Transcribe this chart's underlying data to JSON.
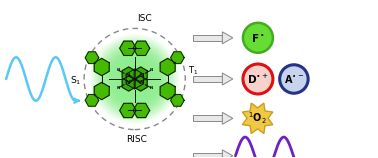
{
  "bg_color": "#ffffff",
  "wave_color_left": "#5bc8f5",
  "wave_color_right": "#7020c0",
  "dashed_circle_color": "#888888",
  "arrow_face": "#e8e8e8",
  "arrow_edge": "#888888",
  "f_circle_color": "#66dd33",
  "f_circle_edge": "#44aa22",
  "d_circle_fill": "#f8d0cc",
  "d_circle_edge": "#dd1111",
  "a_circle_fill": "#c8d4ee",
  "a_circle_edge": "#223388",
  "star_face": "#f0c844",
  "star_edge": "#c8a020",
  "mol_line": "#111111",
  "mol_fill_outer": "#33aa00",
  "mol_fill_inner": "#228800",
  "green_glow": "#90ee90",
  "isc_label": "ISC",
  "risc_label": "RISC",
  "s1_label": "S$_1$",
  "t1_label": "T$_1$",
  "f_label": "F$^\\bullet$",
  "d_label": "D$^{\\bullet+}$",
  "a_label": "A$^{\\bullet-}$",
  "o2_label": "$^1$O$_2$",
  "figsize": [
    3.78,
    1.58
  ],
  "dpi": 100
}
